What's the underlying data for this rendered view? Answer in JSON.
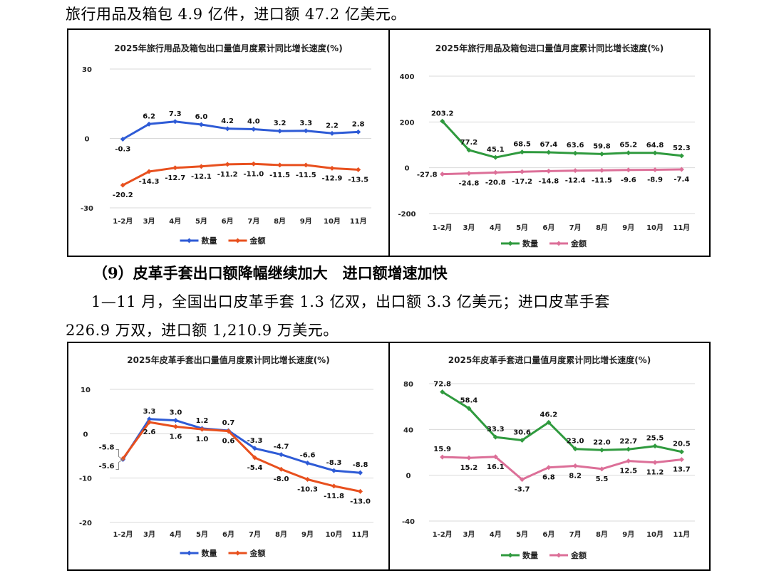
{
  "text": {
    "line1": "旅行用品及箱包 4.9 亿件，进口额 47.2 亿美元。",
    "heading": "（9）皮革手套出口额降幅继续加大　进口额增速加快",
    "para_line1": "1—11 月，全国出口皮革手套 1.3 亿双，出口额 3.3 亿美元；进口皮革手套",
    "para_line2": "226.9 万双，进口额 1,210.9 万美元。"
  },
  "colors": {
    "blue": "#2e5bd6",
    "orange": "#e8501e",
    "green": "#2f9a3e",
    "pink": "#dc6f98",
    "grid": "#d9d9d9"
  },
  "chart_data": [
    {
      "type": "line",
      "title": "2025年旅行用品及箱包出口量值月度累计同比增长速度(%)",
      "categories": [
        "1-2月",
        "3月",
        "4月",
        "5月",
        "6月",
        "7月",
        "8月",
        "9月",
        "10月",
        "11月"
      ],
      "ylim": [
        -30,
        30
      ],
      "yticks": [
        30,
        0,
        -30
      ],
      "legend_position": "bottom",
      "series": [
        {
          "name": "数量",
          "color": "blue",
          "values": [
            -0.3,
            6.2,
            7.3,
            6.0,
            4.2,
            4.0,
            3.2,
            3.3,
            2.2,
            2.8
          ],
          "label_pos": [
            "below",
            "above",
            "above",
            "above",
            "above",
            "above",
            "above",
            "above",
            "above",
            "above"
          ]
        },
        {
          "name": "金额",
          "color": "orange",
          "values": [
            -20.2,
            -14.3,
            -12.7,
            -12.1,
            -11.2,
            -11.0,
            -11.5,
            -11.5,
            -12.9,
            -13.5
          ],
          "label_pos": [
            "below",
            "below",
            "below",
            "below",
            "below",
            "below",
            "below",
            "below",
            "below",
            "below"
          ]
        }
      ]
    },
    {
      "type": "line",
      "title": "2025年旅行用品及箱包进口量值月度累计同比增长速度(%)",
      "categories": [
        "1-2月",
        "3月",
        "4月",
        "5月",
        "6月",
        "7月",
        "8月",
        "9月",
        "10月",
        "11月"
      ],
      "ylim": [
        -200,
        400
      ],
      "yticks": [
        400,
        200,
        0,
        -200
      ],
      "legend_position": "bottom",
      "series": [
        {
          "name": "数量",
          "color": "green",
          "values": [
            203.2,
            77.2,
            45.1,
            68.5,
            67.4,
            63.6,
            59.8,
            65.2,
            64.8,
            52.3
          ],
          "label_pos": [
            "above",
            "above",
            "above",
            "above",
            "above",
            "above",
            "above",
            "above",
            "above",
            "above"
          ]
        },
        {
          "name": "金额",
          "color": "pink",
          "values": [
            -27.8,
            -24.8,
            -20.8,
            -17.2,
            -14.8,
            -12.4,
            -11.5,
            -9.6,
            -8.9,
            -7.4
          ],
          "label_pos": [
            "left",
            "below",
            "below",
            "below",
            "below",
            "below",
            "below",
            "below",
            "below",
            "below"
          ]
        }
      ]
    },
    {
      "type": "line",
      "title": "2025年皮革手套出口量值月度累计同比增长速度(%)",
      "categories": [
        "1-2月",
        "3月",
        "4月",
        "5月",
        "6月",
        "7月",
        "8月",
        "9月",
        "10月",
        "11月"
      ],
      "ylim": [
        -20,
        10
      ],
      "yticks": [
        10,
        0,
        -10,
        -20
      ],
      "legend_position": "bottom",
      "series": [
        {
          "name": "数量",
          "color": "blue",
          "values": [
            -5.8,
            3.3,
            3.0,
            1.2,
            0.7,
            -3.3,
            -4.7,
            -6.6,
            -8.3,
            -8.8
          ],
          "label_pos": [
            "leftup",
            "above",
            "above",
            "above",
            "above",
            "above",
            "above",
            "above",
            "above",
            "above"
          ]
        },
        {
          "name": "金额",
          "color": "orange",
          "values": [
            -5.6,
            2.6,
            1.6,
            1.0,
            0.6,
            -5.4,
            -8.0,
            -10.3,
            -11.8,
            -13.0
          ],
          "label_pos": [
            "leftdown",
            "below",
            "below",
            "below",
            "below",
            "below",
            "below",
            "below",
            "below",
            "below"
          ]
        }
      ]
    },
    {
      "type": "line",
      "title": "2025年皮革手套进口量值月度累计同比增长速度(%)",
      "categories": [
        "1-2月",
        "3月",
        "4月",
        "5月",
        "6月",
        "7月",
        "8月",
        "9月",
        "10月",
        "11月"
      ],
      "ylim": [
        -40,
        80
      ],
      "yticks": [
        80,
        40,
        0,
        -40
      ],
      "legend_position": "bottom",
      "series": [
        {
          "name": "数量",
          "color": "green",
          "values": [
            72.8,
            58.4,
            33.3,
            30.6,
            46.2,
            23.0,
            22.0,
            22.7,
            25.5,
            20.5
          ],
          "label_pos": [
            "above",
            "above",
            "above",
            "above",
            "above",
            "above",
            "above",
            "above",
            "above",
            "above"
          ]
        },
        {
          "name": "金额",
          "color": "pink",
          "values": [
            15.9,
            15.2,
            16.1,
            -3.7,
            6.8,
            8.2,
            5.5,
            12.5,
            11.2,
            13.7
          ],
          "label_pos": [
            "above",
            "below",
            "below",
            "below",
            "below",
            "below",
            "below",
            "below",
            "below",
            "below"
          ]
        }
      ]
    }
  ]
}
